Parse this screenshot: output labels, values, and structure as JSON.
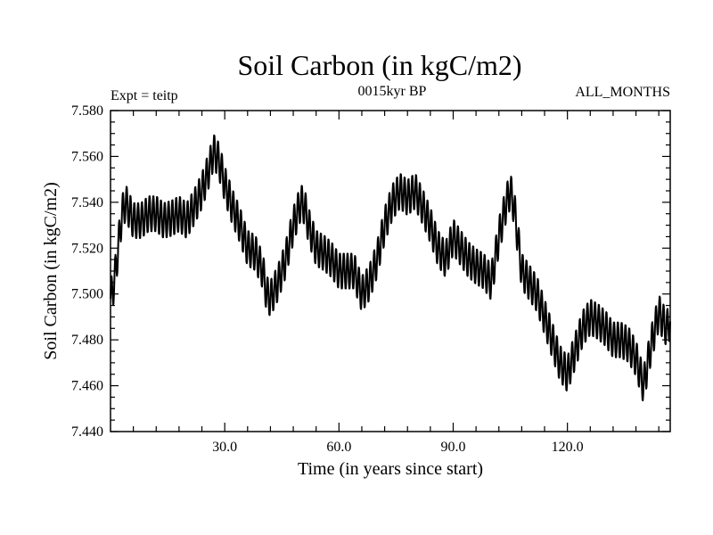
{
  "chart_data": {
    "type": "line",
    "title": "Soil Carbon (in kgC/m2)",
    "subtitle": "0015kyr BP",
    "left_note": "Expt = teitp",
    "right_note": "ALL_MONTHS",
    "xlabel": "Time (in years since start)",
    "ylabel": "Soil Carbon (in kgC/m2)",
    "xlim": [
      0,
      147
    ],
    "ylim": [
      7.44,
      7.58
    ],
    "x_ticks": [
      30.0,
      60.0,
      90.0,
      120.0
    ],
    "x_tick_labels": [
      "30.0",
      "60.0",
      "90.0",
      "120.0"
    ],
    "y_ticks": [
      7.44,
      7.46,
      7.48,
      7.5,
      7.52,
      7.54,
      7.56,
      7.58
    ],
    "y_tick_labels": [
      "7.440",
      "7.460",
      "7.480",
      "7.500",
      "7.520",
      "7.540",
      "7.560",
      "7.580"
    ],
    "grid": false,
    "series": [
      {
        "name": "Soil Carbon",
        "color": "#000000",
        "anchor_x": [
          0,
          1,
          2,
          3,
          4,
          6,
          8,
          10,
          12,
          14,
          16,
          18,
          20,
          22,
          24,
          26,
          27,
          28,
          29,
          30,
          32,
          34,
          36,
          38,
          40,
          41,
          42,
          44,
          46,
          48,
          50,
          51,
          52,
          54,
          56,
          58,
          60,
          62,
          64,
          66,
          68,
          70,
          72,
          74,
          76,
          78,
          80,
          82,
          84,
          86,
          88,
          90,
          92,
          94,
          96,
          98,
          100,
          102,
          104,
          105,
          106,
          108,
          110,
          112,
          114,
          116,
          118,
          120,
          122,
          124,
          126,
          128,
          130,
          132,
          134,
          136,
          138,
          140,
          142,
          144,
          146,
          147
        ],
        "anchor_y": [
          7.498,
          7.505,
          7.52,
          7.535,
          7.54,
          7.532,
          7.532,
          7.535,
          7.535,
          7.532,
          7.533,
          7.535,
          7.532,
          7.538,
          7.545,
          7.555,
          7.562,
          7.56,
          7.555,
          7.548,
          7.538,
          7.53,
          7.52,
          7.518,
          7.51,
          7.5,
          7.498,
          7.505,
          7.515,
          7.53,
          7.54,
          7.538,
          7.53,
          7.52,
          7.518,
          7.515,
          7.51,
          7.51,
          7.51,
          7.5,
          7.505,
          7.515,
          7.53,
          7.54,
          7.545,
          7.542,
          7.545,
          7.538,
          7.53,
          7.52,
          7.515,
          7.525,
          7.52,
          7.515,
          7.512,
          7.51,
          7.505,
          7.525,
          7.54,
          7.545,
          7.538,
          7.51,
          7.505,
          7.5,
          7.49,
          7.48,
          7.47,
          7.465,
          7.475,
          7.485,
          7.49,
          7.488,
          7.485,
          7.48,
          7.48,
          7.478,
          7.472,
          7.46,
          7.478,
          7.492,
          7.485,
          7.488
        ],
        "oscillation_amplitude": 0.008,
        "oscillations_per_year": 1,
        "sample_step": 0.1
      }
    ]
  }
}
